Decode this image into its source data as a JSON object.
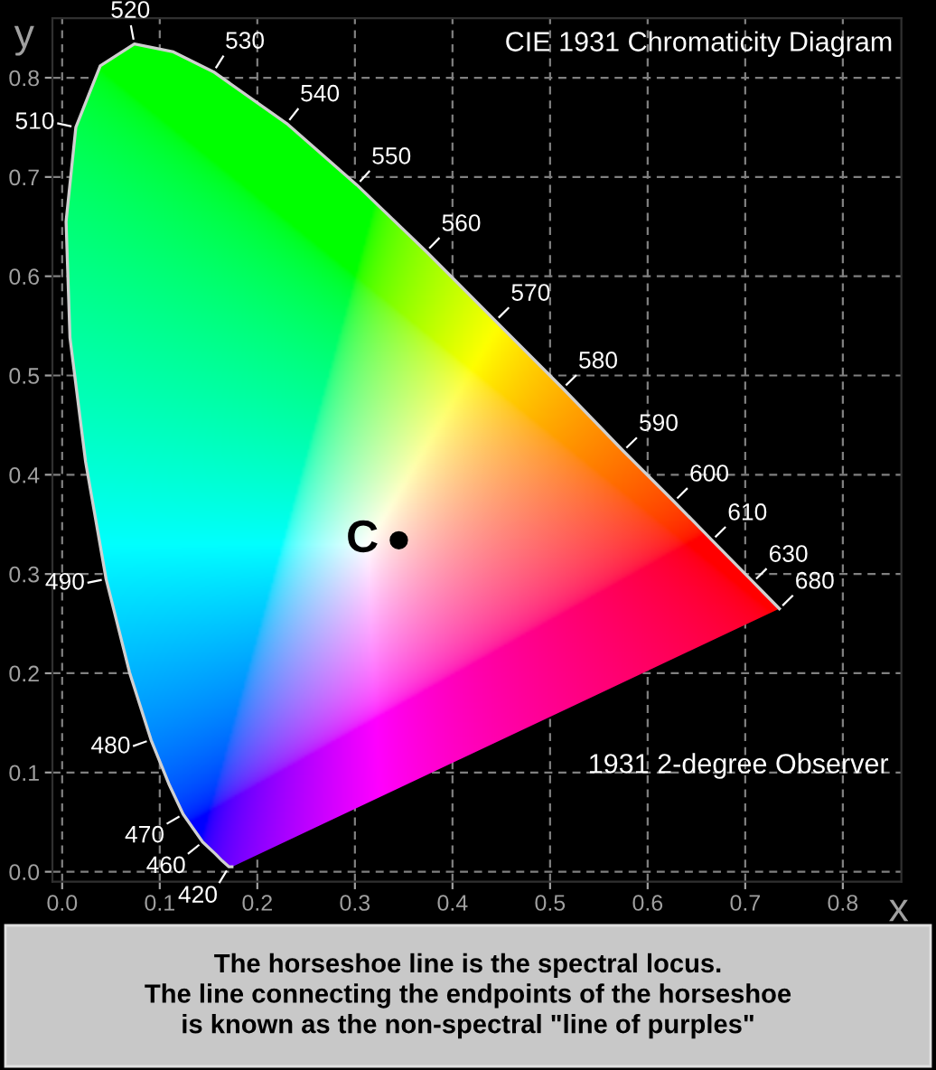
{
  "chart_data": {
    "type": "line",
    "title": "CIE 1931 Chromaticity Diagram",
    "xlabel": "x",
    "ylabel": "y",
    "xlim": [
      -0.01,
      0.86
    ],
    "ylim": [
      -0.01,
      0.86
    ],
    "xticks": [
      {
        "value": 0,
        "label": "0.0"
      },
      0.1,
      0.2,
      0.3,
      0.4,
      0.5,
      0.6,
      0.7,
      0.8
    ],
    "yticks": [
      {
        "value": 0,
        "label": "0.0"
      },
      0.1,
      0.2,
      0.3,
      0.4,
      0.5,
      0.6,
      0.7,
      0.8
    ],
    "grid": true,
    "legend": false,
    "series": [
      {
        "color": "#d0d0d0",
        "x": [
          0.174,
          0.171,
          0.164,
          0.157,
          0.144,
          0.124,
          0.11,
          0.091,
          0.069,
          0.045,
          0.024,
          0.008,
          0.004,
          0.014,
          0.039,
          0.074,
          0.114,
          0.155,
          0.23,
          0.302,
          0.373,
          0.444,
          0.513,
          0.575,
          0.627,
          0.666,
          0.692,
          0.708,
          0.719,
          0.735
        ],
        "values": [
          0.005,
          0.005,
          0.011,
          0.018,
          0.03,
          0.058,
          0.087,
          0.133,
          0.201,
          0.295,
          0.413,
          0.538,
          0.655,
          0.75,
          0.812,
          0.834,
          0.826,
          0.806,
          0.754,
          0.692,
          0.625,
          0.555,
          0.487,
          0.424,
          0.373,
          0.334,
          0.308,
          0.292,
          0.281,
          0.265
        ]
      },
      {
        "type": "scatter",
        "name": "C",
        "color": "#000000",
        "x": [
          0.345
        ],
        "values": [
          0.334
        ]
      }
    ],
    "annotations": [
      {
        "text": "420",
        "x": 0.171,
        "y": 0.005
      },
      {
        "text": "460",
        "x": 0.144,
        "y": 0.03
      },
      {
        "text": "470",
        "x": 0.124,
        "y": 0.058
      },
      {
        "text": "480",
        "x": 0.091,
        "y": 0.133
      },
      {
        "text": "490",
        "x": 0.045,
        "y": 0.295
      },
      {
        "text": "510",
        "x": 0.014,
        "y": 0.75
      },
      {
        "text": "520",
        "x": 0.074,
        "y": 0.834
      },
      {
        "text": "530",
        "x": 0.155,
        "y": 0.806
      },
      {
        "text": "540",
        "x": 0.23,
        "y": 0.754
      },
      {
        "text": "550",
        "x": 0.302,
        "y": 0.692
      },
      {
        "text": "560",
        "x": 0.373,
        "y": 0.625
      },
      {
        "text": "570",
        "x": 0.444,
        "y": 0.555
      },
      {
        "text": "580",
        "x": 0.513,
        "y": 0.487
      },
      {
        "text": "590",
        "x": 0.575,
        "y": 0.424
      },
      {
        "text": "600",
        "x": 0.627,
        "y": 0.373
      },
      {
        "text": "610",
        "x": 0.666,
        "y": 0.334
      },
      {
        "text": "630",
        "x": 0.708,
        "y": 0.292
      },
      {
        "text": "680",
        "x": 0.735,
        "y": 0.265
      },
      "1931 2-degree Observer",
      "The horseshoe line is the spectral locus.\nThe line connecting the endpoints of the horseshoe\nis known as the non-spectral \"line of purples\""
    ]
  }
}
